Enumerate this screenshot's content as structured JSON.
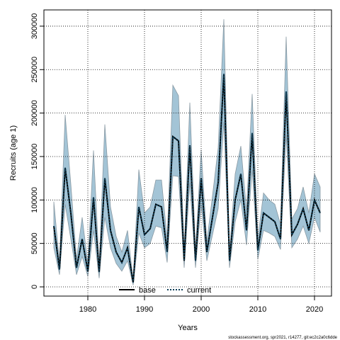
{
  "chart_data": {
    "type": "line",
    "xlabel": "Years",
    "ylabel": "Recruits (age 1)",
    "footer": "stockassessment.org, spr2021, r14277, git:ec2c2a0c6dde",
    "x": [
      1974,
      1975,
      1976,
      1977,
      1978,
      1979,
      1980,
      1981,
      1982,
      1983,
      1984,
      1985,
      1986,
      1987,
      1988,
      1989,
      1990,
      1991,
      1992,
      1993,
      1994,
      1995,
      1996,
      1997,
      1998,
      1999,
      2000,
      2001,
      2002,
      2003,
      2004,
      2005,
      2006,
      2007,
      2008,
      2009,
      2010,
      2011,
      2012,
      2013,
      2014,
      2015,
      2016,
      2017,
      2018,
      2019,
      2020,
      2021
    ],
    "series": [
      {
        "name": "base",
        "color": "#000000",
        "dash": "solid",
        "values": [
          70000,
          20000,
          137000,
          85000,
          22000,
          55000,
          18000,
          103000,
          17000,
          125000,
          65000,
          40000,
          28000,
          45000,
          5000,
          92000,
          60000,
          67000,
          95000,
          92000,
          40000,
          173000,
          168000,
          30000,
          163000,
          30000,
          125000,
          40000,
          80000,
          120000,
          245000,
          30000,
          100000,
          130000,
          65000,
          177000,
          42000,
          85000,
          80000,
          75000,
          55000,
          225000,
          60000,
          72000,
          90000,
          65000,
          100000,
          85000
        ]
      },
      {
        "name": "current",
        "color": "#0d3d56",
        "dash": "dotted",
        "values": [
          70000,
          20000,
          137000,
          85000,
          22000,
          55000,
          18000,
          103000,
          17000,
          125000,
          65000,
          40000,
          28000,
          45000,
          5000,
          92000,
          60000,
          67000,
          95000,
          92000,
          40000,
          173000,
          168000,
          30000,
          163000,
          30000,
          125000,
          40000,
          80000,
          120000,
          245000,
          30000,
          100000,
          130000,
          65000,
          177000,
          42000,
          85000,
          80000,
          75000,
          55000,
          225000,
          60000,
          72000,
          90000,
          65000,
          100000,
          85000
        ]
      }
    ],
    "band_color": "#a3c4d6",
    "band_upper": [
      98000,
      28000,
      198000,
      118000,
      32000,
      80000,
      27000,
      157000,
      25000,
      187000,
      92000,
      58000,
      40000,
      65000,
      8000,
      135000,
      85000,
      92000,
      123000,
      123000,
      55000,
      232000,
      220000,
      42000,
      212000,
      42000,
      158000,
      52000,
      105000,
      160000,
      308000,
      40000,
      130000,
      162000,
      88000,
      222000,
      55000,
      108000,
      100000,
      95000,
      72000,
      288000,
      78000,
      90000,
      115000,
      85000,
      130000,
      115000
    ],
    "band_lower": [
      45000,
      14000,
      95000,
      55000,
      14000,
      35000,
      12000,
      65000,
      10000,
      80000,
      45000,
      27000,
      18000,
      30000,
      2000,
      62000,
      45000,
      50000,
      70000,
      68000,
      28000,
      128000,
      127000,
      22000,
      120000,
      22000,
      95000,
      30000,
      60000,
      90000,
      190000,
      22000,
      75000,
      100000,
      48000,
      135000,
      32000,
      65000,
      62000,
      58000,
      43000,
      175000,
      45000,
      55000,
      70000,
      50000,
      80000,
      63000
    ],
    "xlim": [
      1972.25,
      2023
    ],
    "ylim": [
      -10600,
      318700
    ],
    "xticks": [
      1980,
      1990,
      2000,
      2010,
      2020
    ],
    "yticks": [
      0,
      50000,
      100000,
      150000,
      200000,
      250000,
      300000
    ],
    "grid": true,
    "legend": "bottom"
  }
}
